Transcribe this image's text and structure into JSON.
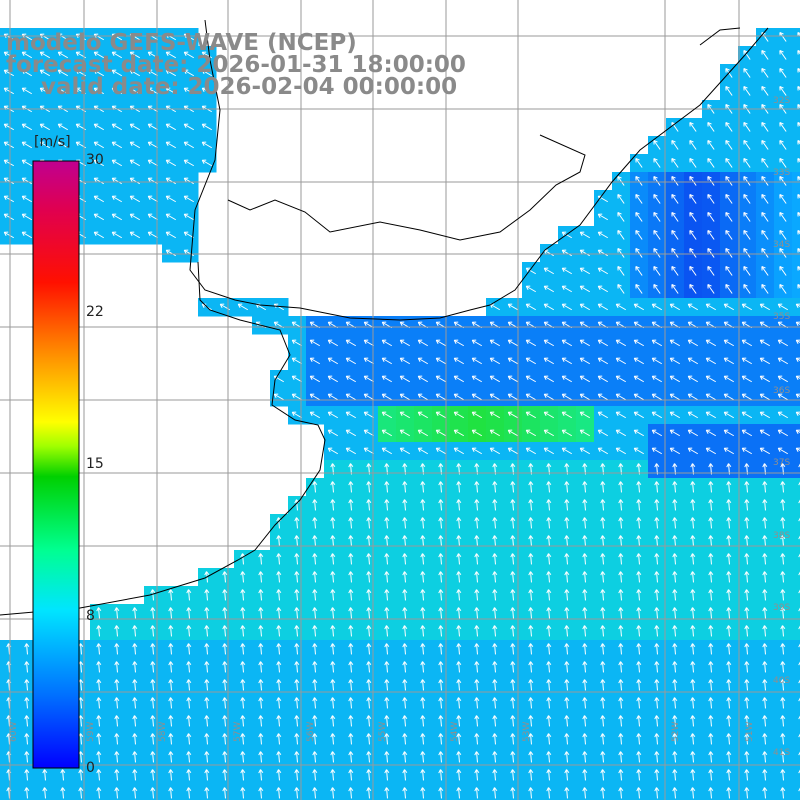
{
  "title": {
    "line1": "modelo GEFS-WAVE (NCEP)",
    "line2": "forecast date: 2026-01-31 18:00:00",
    "line3": "valid date: 2026-02-04 00:00:00"
  },
  "colorbar": {
    "unit": "[m/s]",
    "min": 0,
    "max": 30,
    "ticks": [
      "30",
      "22",
      "15",
      "8",
      "0"
    ],
    "tick_values": [
      30,
      22,
      15,
      8,
      0
    ],
    "gradient_colors": [
      "#0000ff",
      "#0080ff",
      "#00e5ff",
      "#00ff80",
      "#00d000",
      "#a0ff00",
      "#ffff00",
      "#ff9000",
      "#ff0000",
      "#e00040",
      "#c00080"
    ]
  },
  "map": {
    "ocean_low": "#0a4df0",
    "ocean_mid": "#0aa8ff",
    "ocean_high": "#10eec8",
    "strong": "#22e030",
    "land": "#ffffff",
    "grid_color": "#9a9a9a",
    "coast_color": "#000000",
    "arrow_color": "#ffffff",
    "lon_labels": [
      "60W",
      "59W",
      "58W",
      "57W",
      "56W",
      "55W",
      "54W",
      "53W",
      "52W",
      "51W"
    ],
    "lat_labels": [
      "32S",
      "33S",
      "34S",
      "35S",
      "36S",
      "37S",
      "38S",
      "39S",
      "40S",
      "41S"
    ]
  }
}
